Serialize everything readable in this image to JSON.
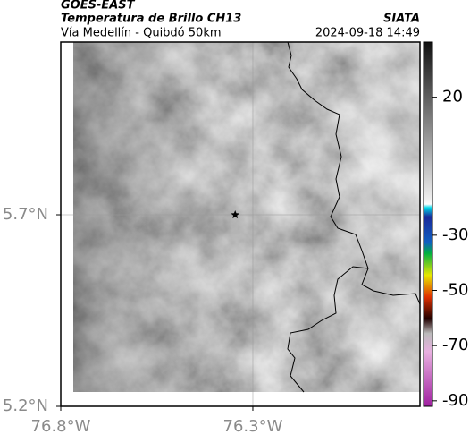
{
  "chart_data": {
    "type": "map",
    "title": "GOES-EAST",
    "subtitle": "Temperatura de Brillo CH13",
    "region": "Vía Medellín - Quibdó 50km",
    "source": "SIATA",
    "timestamp": "2024-09-18 14:49",
    "xlim": [
      -76.8,
      -75.865
    ],
    "ylim": [
      5.2,
      6.151
    ],
    "xticks": [
      {
        "value": -76.8,
        "label": "76.8°W"
      },
      {
        "value": -76.3,
        "label": "76.3°W"
      }
    ],
    "yticks": [
      {
        "value": 5.2,
        "label": "5.2°N"
      },
      {
        "value": 5.7,
        "label": "5.7°N"
      }
    ],
    "grid": true,
    "marker": {
      "lon": -76.346,
      "lat": 5.7
    },
    "colorbar": {
      "lim": [
        -92,
        40
      ],
      "ticks": [
        20,
        -30,
        -50,
        -70,
        -90
      ]
    }
  }
}
